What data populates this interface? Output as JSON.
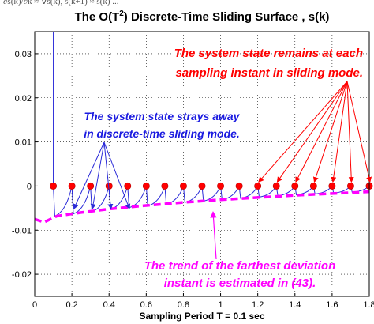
{
  "top_caption": "∂s(k)/∂k ≈ ∇s(k), s(k+1) ≈ s(k) ...",
  "chart_data": {
    "type": "line",
    "title_main": "The O(T",
    "title_sup": "2",
    "title_rest": ") Discrete-Time Sliding Surface , s(k)",
    "xlabel": "Sampling Period T = 0.1 sec",
    "ylabel": "",
    "xlim": [
      0,
      1.8
    ],
    "ylim": [
      -0.025,
      0.035
    ],
    "x_ticks": [
      "0",
      "0.2",
      "0.4",
      "0.6",
      "0.8",
      "1",
      "1.2",
      "1.4",
      "1.6",
      "1.8"
    ],
    "y_ticks": [
      "0.03",
      "0.02",
      "0.01",
      "0",
      "-0.01",
      "-0.02"
    ],
    "x_tick_values": [
      0,
      0.2,
      0.4,
      0.6,
      0.8,
      1.0,
      1.2,
      1.4,
      1.6,
      1.8
    ],
    "y_tick_values": [
      0.03,
      0.02,
      0.01,
      0,
      -0.01,
      -0.02
    ],
    "grid": true,
    "series": [
      {
        "role": "sliding surface trajectory",
        "color": "#2a2ad8",
        "sampling_instants": [
          0.1,
          0.2,
          0.3,
          0.4,
          0.5,
          0.6,
          0.7,
          0.8,
          0.9,
          1.0,
          1.1,
          1.2,
          1.3,
          1.4,
          1.5,
          1.6,
          1.7,
          1.8
        ],
        "lowest_deviation": [
          -0.0068,
          -0.0063,
          -0.0058,
          -0.0053,
          -0.0049,
          -0.0045,
          -0.0041,
          -0.0037,
          -0.0034,
          -0.0031,
          -0.0028,
          -0.0025,
          -0.0022,
          -0.002,
          -0.0018,
          -0.0016,
          -0.0014,
          -0.0012
        ],
        "initial_spike_top": 0.035
      },
      {
        "role": "farthest deviation trend",
        "color": "#ff00ff",
        "dashed": true,
        "x": [
          0,
          0.05,
          0.12,
          0.25,
          0.4,
          0.6,
          0.8,
          1.0,
          1.2,
          1.4,
          1.6,
          1.8
        ],
        "y": [
          -0.0075,
          -0.0082,
          -0.0068,
          -0.006,
          -0.0052,
          -0.0044,
          -0.0037,
          -0.0031,
          -0.0026,
          -0.0021,
          -0.0017,
          -0.0013
        ]
      },
      {
        "role": "samples at each instant",
        "color": "#ff0000",
        "x": [
          0.1,
          0.2,
          0.3,
          0.4,
          0.5,
          0.6,
          0.7,
          0.8,
          0.9,
          1.0,
          1.1,
          1.2,
          1.3,
          1.4,
          1.5,
          1.6,
          1.7,
          1.8
        ],
        "y": [
          0,
          0,
          0,
          0,
          0,
          0,
          0,
          0,
          0,
          0,
          0,
          0,
          0,
          0,
          0,
          0,
          0,
          0
        ]
      }
    ],
    "annotations": [
      {
        "lines": [
          "The system state remains at each",
          "sampling instant in sliding mode."
        ],
        "color": "#ff0000"
      },
      {
        "lines": [
          "The system state strays away",
          "in discrete-time sliding mode."
        ],
        "color": "#1a1ae0"
      },
      {
        "lines": [
          "The trend of the farthest deviation",
          "instant is estimated in (43)."
        ],
        "color": "#ff00ff"
      }
    ]
  }
}
